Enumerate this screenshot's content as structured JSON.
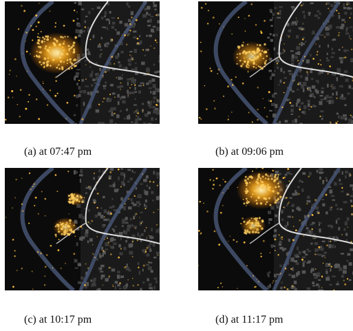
{
  "figure": {
    "panels": [
      {
        "caption": "(a) at 07:47 pm"
      },
      {
        "caption": "(b) at 09:06 pm"
      },
      {
        "caption": "(c) at 10:17 pm"
      },
      {
        "caption": "(d) at 11:17 pm"
      }
    ]
  }
}
